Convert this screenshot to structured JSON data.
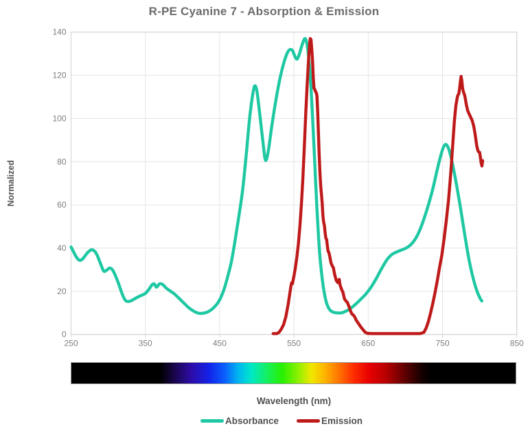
{
  "colors": {
    "background": "#ffffff",
    "grid": "#e4e4e4",
    "plot_border": "#d6d6d6",
    "tick_text": "#7d7d7d",
    "title_text": "#6b6b6b",
    "label_text": "#4f4f4f",
    "absorbance": "#1ec8a2",
    "emission": "#bf1a1a"
  },
  "chart_data": {
    "type": "line",
    "title": "R-PE Cyanine 7 - Absorption & Emission",
    "xlabel": "Wavelength (nm)",
    "ylabel": "Normalized",
    "xlim": [
      250,
      850
    ],
    "ylim": [
      0,
      140
    ],
    "x_ticks": [
      250,
      350,
      450,
      550,
      650,
      750,
      850
    ],
    "y_ticks": [
      0,
      20,
      40,
      60,
      80,
      100,
      120,
      140
    ],
    "grid": true,
    "legend_position": "bottom",
    "series": [
      {
        "name": "Absorbance",
        "color": "#1ec8a2",
        "smooth": true,
        "points": [
          [
            250,
            40.5
          ],
          [
            253,
            38.5
          ],
          [
            256,
            36.5
          ],
          [
            259,
            35
          ],
          [
            262,
            34.3
          ],
          [
            265,
            34.8
          ],
          [
            268,
            36
          ],
          [
            272,
            37.8
          ],
          [
            277,
            39.2
          ],
          [
            280,
            39
          ],
          [
            283,
            38
          ],
          [
            286,
            36
          ],
          [
            290,
            32.5
          ],
          [
            294,
            29.3
          ],
          [
            298,
            29.8
          ],
          [
            302,
            30.8
          ],
          [
            306,
            29.8
          ],
          [
            310,
            27
          ],
          [
            314,
            23.5
          ],
          [
            318,
            19.5
          ],
          [
            321,
            17
          ],
          [
            324,
            15.5
          ],
          [
            328,
            15.3
          ],
          [
            332,
            15.8
          ],
          [
            338,
            17
          ],
          [
            344,
            18
          ],
          [
            350,
            19
          ],
          [
            355,
            21
          ],
          [
            359,
            23
          ],
          [
            362,
            23.4
          ],
          [
            365,
            21.9
          ],
          [
            369,
            23.4
          ],
          [
            373,
            23.2
          ],
          [
            378,
            21.5
          ],
          [
            384,
            20
          ],
          [
            390,
            18.5
          ],
          [
            396,
            16.5
          ],
          [
            402,
            14.5
          ],
          [
            408,
            12.5
          ],
          [
            415,
            10.8
          ],
          [
            421,
            9.9
          ],
          [
            427,
            9.8
          ],
          [
            433,
            10.3
          ],
          [
            439,
            11.5
          ],
          [
            445,
            13.5
          ],
          [
            450,
            16
          ],
          [
            456,
            21
          ],
          [
            461,
            27
          ],
          [
            466,
            34
          ],
          [
            471,
            44
          ],
          [
            476,
            55
          ],
          [
            481,
            67
          ],
          [
            486,
            84
          ],
          [
            490,
            99
          ],
          [
            494,
            110
          ],
          [
            497,
            115
          ],
          [
            500,
            113
          ],
          [
            503,
            105
          ],
          [
            506,
            96
          ],
          [
            509,
            87
          ],
          [
            511,
            81.5
          ],
          [
            513,
            81
          ],
          [
            516,
            86
          ],
          [
            520,
            96
          ],
          [
            525,
            107
          ],
          [
            530,
            116.5
          ],
          [
            535,
            124
          ],
          [
            540,
            129.5
          ],
          [
            544,
            131.8
          ],
          [
            548,
            131.5
          ],
          [
            551,
            129
          ],
          [
            554,
            127.5
          ],
          [
            557,
            129.5
          ],
          [
            560,
            133
          ],
          [
            563,
            136
          ],
          [
            565,
            137
          ],
          [
            567,
            135.5
          ],
          [
            569,
            131
          ],
          [
            571,
            124
          ],
          [
            573,
            114
          ],
          [
            575,
            101
          ],
          [
            577,
            87
          ],
          [
            579,
            72
          ],
          [
            581,
            58
          ],
          [
            583,
            46
          ],
          [
            585,
            36
          ],
          [
            588,
            26
          ],
          [
            591,
            19
          ],
          [
            594,
            14.5
          ],
          [
            598,
            11.5
          ],
          [
            603,
            10.3
          ],
          [
            608,
            10
          ],
          [
            614,
            10
          ],
          [
            620,
            10.8
          ],
          [
            626,
            12
          ],
          [
            633,
            14
          ],
          [
            640,
            16.3
          ],
          [
            647,
            18.8
          ],
          [
            654,
            22
          ],
          [
            661,
            26
          ],
          [
            668,
            30.5
          ],
          [
            675,
            34.5
          ],
          [
            681,
            36.8
          ],
          [
            687,
            38
          ],
          [
            694,
            39
          ],
          [
            701,
            40
          ],
          [
            707,
            41.5
          ],
          [
            713,
            44
          ],
          [
            719,
            48
          ],
          [
            725,
            53.5
          ],
          [
            731,
            60
          ],
          [
            737,
            67.5
          ],
          [
            742,
            75
          ],
          [
            747,
            82
          ],
          [
            751,
            86.5
          ],
          [
            754,
            88
          ],
          [
            757,
            87
          ],
          [
            760,
            84
          ],
          [
            764,
            78
          ],
          [
            769,
            69
          ],
          [
            774,
            59
          ],
          [
            780,
            46
          ],
          [
            786,
            34
          ],
          [
            792,
            25
          ],
          [
            797,
            19.5
          ],
          [
            801,
            16.5
          ],
          [
            803,
            15.5
          ]
        ]
      },
      {
        "name": "Emission",
        "color": "#bf1a1a",
        "smooth": false,
        "points": [
          [
            522,
            0.4
          ],
          [
            527,
            0.4
          ],
          [
            530,
            1
          ],
          [
            533,
            2.5
          ],
          [
            536,
            4.5
          ],
          [
            539,
            8
          ],
          [
            542,
            13.5
          ],
          [
            544,
            18
          ],
          [
            546,
            22.5
          ],
          [
            547,
            24
          ],
          [
            548,
            23.5
          ],
          [
            550,
            27
          ],
          [
            552,
            31
          ],
          [
            554,
            36
          ],
          [
            556,
            42
          ],
          [
            558,
            50
          ],
          [
            560,
            60
          ],
          [
            562,
            72
          ],
          [
            564,
            87
          ],
          [
            566,
            103
          ],
          [
            568,
            117
          ],
          [
            570,
            129
          ],
          [
            571,
            134
          ],
          [
            572,
            137
          ],
          [
            573,
            136.5
          ],
          [
            574,
            132
          ],
          [
            575,
            127
          ],
          [
            576,
            119
          ],
          [
            577,
            114
          ],
          [
            578,
            113.5
          ],
          [
            579,
            112.5
          ],
          [
            580,
            112
          ],
          [
            581,
            110.5
          ],
          [
            582,
            103
          ],
          [
            583,
            93
          ],
          [
            584,
            83
          ],
          [
            585,
            75
          ],
          [
            586,
            69
          ],
          [
            587,
            65
          ],
          [
            588,
            61
          ],
          [
            589,
            55
          ],
          [
            590,
            52
          ],
          [
            591,
            50.5
          ],
          [
            592,
            47
          ],
          [
            593,
            44.5
          ],
          [
            594,
            44
          ],
          [
            595,
            41
          ],
          [
            596,
            38.5
          ],
          [
            597,
            38
          ],
          [
            598,
            36.5
          ],
          [
            600,
            33
          ],
          [
            602,
            31.5
          ],
          [
            603,
            31
          ],
          [
            605,
            27.5
          ],
          [
            607,
            25
          ],
          [
            609,
            24
          ],
          [
            610,
            25
          ],
          [
            611,
            25.5
          ],
          [
            612,
            23
          ],
          [
            614,
            21
          ],
          [
            616,
            19.5
          ],
          [
            618,
            16.5
          ],
          [
            620,
            15.5
          ],
          [
            622,
            14.8
          ],
          [
            624,
            13
          ],
          [
            626,
            11
          ],
          [
            628,
            9.5
          ],
          [
            630,
            9
          ],
          [
            632,
            8
          ],
          [
            634,
            6.5
          ],
          [
            636,
            5.5
          ],
          [
            638,
            4.5
          ],
          [
            640,
            3.5
          ],
          [
            643,
            2.2
          ],
          [
            646,
            1
          ],
          [
            649,
            0.5
          ],
          [
            655,
            0.4
          ],
          [
            665,
            0.4
          ],
          [
            680,
            0.4
          ],
          [
            695,
            0.4
          ],
          [
            710,
            0.4
          ],
          [
            720,
            0.4
          ],
          [
            725,
            1
          ],
          [
            728,
            3
          ],
          [
            731,
            6
          ],
          [
            734,
            10
          ],
          [
            737,
            14.5
          ],
          [
            740,
            19.5
          ],
          [
            743,
            25
          ],
          [
            746,
            31
          ],
          [
            749,
            36.5
          ],
          [
            752,
            44
          ],
          [
            755,
            52.5
          ],
          [
            758,
            62
          ],
          [
            760,
            70
          ],
          [
            762,
            79
          ],
          [
            764,
            89
          ],
          [
            766,
            99
          ],
          [
            768,
            106
          ],
          [
            770,
            110
          ],
          [
            771,
            111
          ],
          [
            772,
            111.5
          ],
          [
            773,
            114
          ],
          [
            774,
            117
          ],
          [
            775,
            119.5
          ],
          [
            776,
            117.5
          ],
          [
            777,
            114
          ],
          [
            778,
            112.5
          ],
          [
            780,
            110.5
          ],
          [
            782,
            106.5
          ],
          [
            784,
            103.5
          ],
          [
            786,
            102
          ],
          [
            788,
            100.5
          ],
          [
            790,
            99
          ],
          [
            792,
            96.5
          ],
          [
            794,
            92.5
          ],
          [
            795,
            90
          ],
          [
            796,
            87.5
          ],
          [
            797,
            86
          ],
          [
            798,
            84.8
          ],
          [
            799,
            84.5
          ],
          [
            800,
            84.3
          ],
          [
            801,
            82
          ],
          [
            802,
            79.5
          ],
          [
            803,
            78
          ],
          [
            804,
            80.5
          ]
        ]
      }
    ],
    "spectrum_bar": {
      "range_nm": [
        250,
        850
      ],
      "stops": [
        {
          "pos": 0,
          "color": "#000000"
        },
        {
          "pos": 20,
          "color": "#000000"
        },
        {
          "pos": 23.5,
          "color": "#1b0653"
        },
        {
          "pos": 27,
          "color": "#2e0ca8"
        },
        {
          "pos": 31,
          "color": "#1223e8"
        },
        {
          "pos": 34.5,
          "color": "#0b5fff"
        },
        {
          "pos": 37.5,
          "color": "#00b4f0"
        },
        {
          "pos": 40.5,
          "color": "#00e8c8"
        },
        {
          "pos": 44,
          "color": "#15f060"
        },
        {
          "pos": 47.5,
          "color": "#28f000"
        },
        {
          "pos": 51,
          "color": "#8cf000"
        },
        {
          "pos": 54,
          "color": "#f0e800"
        },
        {
          "pos": 57,
          "color": "#ffb400"
        },
        {
          "pos": 60,
          "color": "#ff7800"
        },
        {
          "pos": 63.5,
          "color": "#ff2d00"
        },
        {
          "pos": 67,
          "color": "#e80000"
        },
        {
          "pos": 71,
          "color": "#b40000"
        },
        {
          "pos": 75,
          "color": "#600000"
        },
        {
          "pos": 79,
          "color": "#120000"
        },
        {
          "pos": 81,
          "color": "#000000"
        },
        {
          "pos": 100,
          "color": "#000000"
        }
      ]
    }
  }
}
